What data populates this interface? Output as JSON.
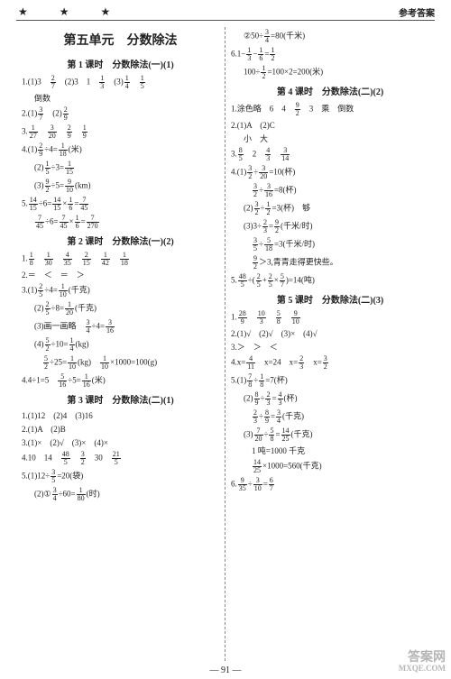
{
  "header": {
    "stars": "★ ★ ★",
    "right": "参考答案"
  },
  "unitTitle": "第五单元　分数除法",
  "pageNumber": "— 91 —",
  "watermark": {
    "l1": "答案网",
    "l2": "MXQE.COM"
  },
  "left": [
    {
      "t": "lesson",
      "v": "第 1 课时　分数除法(一)(1)"
    },
    {
      "t": "line",
      "v": "1.(1)3　{2/7}　(2)3　1　{1/3}　(3){1/4}　{1/5}"
    },
    {
      "t": "line",
      "cls": "indent",
      "v": "倒数"
    },
    {
      "t": "line",
      "v": "2.(1){3/7}　(2){2/9}"
    },
    {
      "t": "line",
      "v": "3.{1/27}　{3/20}　{2/9}　{1/9}"
    },
    {
      "t": "line",
      "v": "4.(1){2/9}÷4={1/18}(米)"
    },
    {
      "t": "line",
      "cls": "indent",
      "v": "(2){1/5}÷3={1/15}"
    },
    {
      "t": "line",
      "cls": "indent",
      "v": "(3){9/2}÷5={9/10}(km)"
    },
    {
      "t": "line",
      "v": "5.{14/15}÷6={14/15}×{1/6}={7/45}"
    },
    {
      "t": "line",
      "cls": "indent",
      "v": "{7/45}÷6={7/45}×{1/6}={7/270}"
    },
    {
      "t": "lesson",
      "v": "第 2 课时　分数除法(一)(2)"
    },
    {
      "t": "line",
      "v": "1.{1/8}　{1/30}　{4/35}　{2/15}　{1/42}　{1/18}"
    },
    {
      "t": "line",
      "v": "2.＝　＜　＝　＞"
    },
    {
      "t": "line",
      "v": "3.(1){2/5}÷4={1/10}(千克)"
    },
    {
      "t": "line",
      "cls": "indent",
      "v": "(2){2/5}÷8={1/20}(千克)"
    },
    {
      "t": "line",
      "cls": "indent",
      "v": "(3)画一画略　{3/4}÷4={3/16}"
    },
    {
      "t": "line",
      "cls": "indent",
      "v": "(4){5/2}÷10={1/4}(kg)"
    },
    {
      "t": "line",
      "cls": "indent",
      "v": "　{5/2}÷25={1/10}(kg)　{1/10}×1000=100(g)"
    },
    {
      "t": "line",
      "v": "4.4÷1=5　{5/16}÷5={1/16}(米)"
    },
    {
      "t": "lesson",
      "v": "第 3 课时　分数除法(二)(1)"
    },
    {
      "t": "line",
      "v": "1.(1)12　(2)4　(3)16"
    },
    {
      "t": "line",
      "v": "2.(1)A　(2)B"
    },
    {
      "t": "line",
      "v": "3.(1)×　(2)√　(3)×　(4)×"
    },
    {
      "t": "line",
      "v": "4.10　14　{48/5}　{3/2}　30　{21/5}"
    },
    {
      "t": "line",
      "v": "5.(1)12÷{3/5}=20(袋)"
    },
    {
      "t": "line",
      "cls": "indent",
      "v": "(2)①{3/4}÷60={1/80}(时)"
    }
  ],
  "right": [
    {
      "t": "line",
      "cls": "indent",
      "v": "②50÷{3/4}=80(千米)"
    },
    {
      "t": "line",
      "v": "6.1−{1/3}−{1/6}={1/2}"
    },
    {
      "t": "line",
      "cls": "indent",
      "v": "100÷{1/2}=100×2=200(米)"
    },
    {
      "t": "lesson",
      "v": "第 4 课时　分数除法(二)(2)"
    },
    {
      "t": "line",
      "v": "1.涂色略　6　4　{9/2}　3　乘　倒数"
    },
    {
      "t": "line",
      "v": "2.(1)A　(2)C"
    },
    {
      "t": "line",
      "cls": "indent",
      "v": "小　大"
    },
    {
      "t": "line",
      "v": "3.{8/5}　2　{4/3}　{3/14}"
    },
    {
      "t": "line",
      "v": "4.(1){3/2}÷{3/20}=10(杯)"
    },
    {
      "t": "line",
      "cls": "indent",
      "v": "　{3/2}÷{3/16}=8(杯)"
    },
    {
      "t": "line",
      "cls": "indent",
      "v": "(2){3/2}÷{1/2}=3(杯)　够"
    },
    {
      "t": "line",
      "cls": "indent",
      "v": "(3)3÷{2/3}={9/2}(千米/时)"
    },
    {
      "t": "line",
      "cls": "indent",
      "v": "　{3/5}÷{5/18}=3(千米/时)"
    },
    {
      "t": "line",
      "cls": "indent",
      "v": "　{9/2}＞3,青青走得更快些。"
    },
    {
      "t": "line",
      "v": "5.{48/5}÷({2/5}+{2/5}×{5/7})=14(吨)"
    },
    {
      "t": "lesson",
      "v": "第 5 课时　分数除法(二)(3)"
    },
    {
      "t": "line",
      "v": "1.{28/9}　{10/3}　{5/8}　{9/10}"
    },
    {
      "t": "line",
      "v": "2.(1)√　(2)√　(3)×　(4)√"
    },
    {
      "t": "line",
      "v": "3.＞　＞　＜"
    },
    {
      "t": "line",
      "v": "4.x={4/11}　x=24　x={2/3}　x={3/2}"
    },
    {
      "t": "line",
      "v": "5.(1){7/8}÷{1/8}=7(杯)"
    },
    {
      "t": "line",
      "cls": "indent",
      "v": "(2){8/9}÷{2/3}={4/3}(杯)"
    },
    {
      "t": "line",
      "cls": "indent",
      "v": "　{2/3}÷{8/9}={3/4}(千克)"
    },
    {
      "t": "line",
      "cls": "indent",
      "v": "(3){7/20}÷{5/8}={14/25}(千克)"
    },
    {
      "t": "line",
      "cls": "indent",
      "v": "　1 吨=1000 千克"
    },
    {
      "t": "line",
      "cls": "indent",
      "v": "　{14/25}×1000=560(千克)"
    },
    {
      "t": "line",
      "v": "6.{9/35}÷{3/10}={6/7}"
    }
  ]
}
